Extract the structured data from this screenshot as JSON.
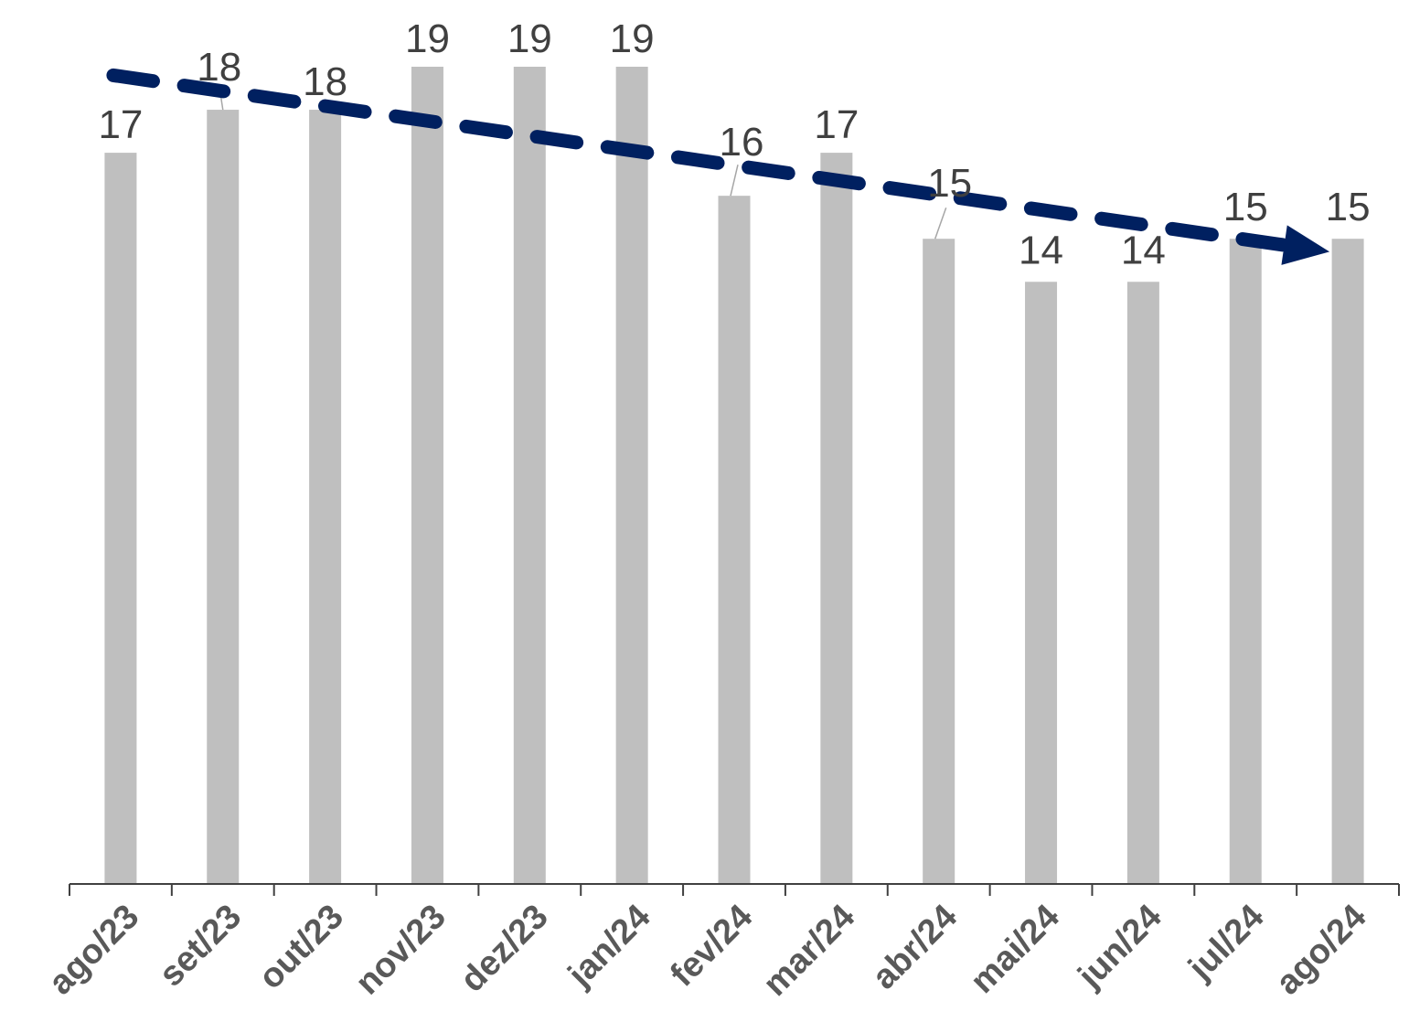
{
  "chart_data": {
    "type": "bar",
    "categories": [
      "ago/23",
      "set/23",
      "out/23",
      "nov/23",
      "dez/23",
      "jan/24",
      "fev/24",
      "mar/24",
      "abr/24",
      "mai/24",
      "jun/24",
      "jul/24",
      "ago/24"
    ],
    "values": [
      17,
      18,
      18,
      19,
      19,
      19,
      16,
      17,
      15,
      14,
      14,
      15,
      15
    ],
    "value_labels": [
      "17",
      "18",
      "18",
      "19",
      "19",
      "19",
      "16",
      "17",
      "15",
      "14",
      "14",
      "15",
      "15"
    ],
    "ylim": [
      0,
      19
    ],
    "grid": false,
    "legend": "none",
    "bar_color": "#bfbfbf",
    "label_color": "#404040",
    "axis_color": "#404040",
    "trend": {
      "style": "dashed-arrow",
      "color": "#002060",
      "from_value": 18.8,
      "to_value": 14.7
    }
  }
}
